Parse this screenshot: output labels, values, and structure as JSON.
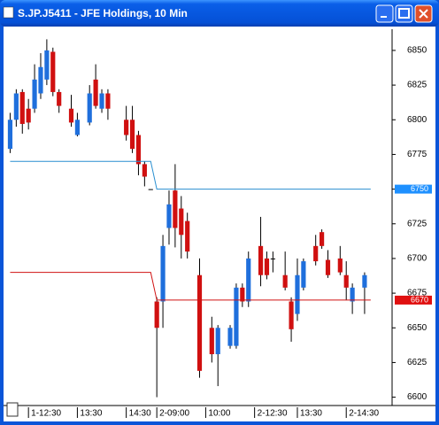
{
  "chart_data": {
    "type": "candlestick",
    "title": "S.JP.J5411 - JFE Holdings, 10 Min",
    "up_color": "#1f6fdc",
    "down_color": "#d01010",
    "x": [
      0,
      1,
      2,
      3,
      4,
      5,
      6,
      7,
      8,
      10,
      11,
      13,
      14,
      15,
      16,
      19,
      20,
      21,
      22,
      23,
      24,
      25,
      26,
      27,
      28,
      29,
      31,
      33,
      34,
      36,
      37,
      38,
      39,
      41,
      42,
      43,
      45,
      46,
      47,
      48,
      50,
      51,
      52,
      54,
      55,
      56,
      58
    ],
    "open": [
      6779,
      6800,
      6820,
      6808,
      6808,
      6819,
      6829,
      6849,
      6820,
      6808,
      6789,
      6798,
      6829,
      6808,
      6819,
      6800,
      6800,
      6789,
      6768,
      6750,
      6669,
      6669,
      6722,
      6749,
      6736,
      6727,
      6688,
      6650,
      6631,
      6637,
      6637,
      6679,
      6669,
      6709,
      6700,
      6700,
      6688,
      6669,
      6660,
      6679,
      6709,
      6719,
      6699,
      6700,
      6688,
      6669,
      6679
    ],
    "high": [
      6805,
      6822,
      6822,
      6815,
      6840,
      6848,
      6858,
      6852,
      6822,
      6818,
      6805,
      6825,
      6840,
      6822,
      6822,
      6810,
      6810,
      6792,
      6770,
      6750,
      6672,
      6717,
      6749,
      6768,
      6745,
      6733,
      6700,
      6658,
      6652,
      6652,
      6682,
      6682,
      6705,
      6730,
      6705,
      6705,
      6705,
      6672,
      6700,
      6700,
      6717,
      6721,
      6706,
      6709,
      6698,
      6682,
      6690
    ],
    "low": [
      6776,
      6795,
      6790,
      6793,
      6805,
      6815,
      6825,
      6817,
      6805,
      6795,
      6788,
      6796,
      6808,
      6805,
      6800,
      6785,
      6776,
      6760,
      6752,
      6750,
      6600,
      6650,
      6710,
      6708,
      6700,
      6700,
      6614,
      6625,
      6608,
      6635,
      6635,
      6665,
      6665,
      6680,
      6685,
      6690,
      6677,
      6640,
      6655,
      6677,
      6695,
      6707,
      6686,
      6688,
      6670,
      6660,
      6660
    ],
    "close": [
      6800,
      6819,
      6797,
      6798,
      6829,
      6838,
      6850,
      6820,
      6810,
      6798,
      6800,
      6819,
      6810,
      6819,
      6808,
      6789,
      6779,
      6768,
      6759,
      6750,
      6650,
      6709,
      6739,
      6722,
      6717,
      6705,
      6619,
      6631,
      6650,
      6650,
      6679,
      6669,
      6700,
      6688,
      6688,
      6700,
      6679,
      6649,
      6688,
      6698,
      6698,
      6709,
      6688,
      6690,
      6679,
      6679,
      6688
    ],
    "lines": [
      {
        "color": "#2a8fd0",
        "tag_color": "#1e90ff",
        "x": [
          0,
          23,
          24,
          59
        ],
        "values": [
          6770,
          6770,
          6750,
          6750
        ]
      },
      {
        "color": "#d01010",
        "tag_color": "#e01010",
        "x": [
          0,
          23,
          24,
          59
        ],
        "values": [
          6690,
          6690,
          6670,
          6670
        ]
      }
    ],
    "xlim": [
      -0.5,
      62.5
    ],
    "xticks": [
      {
        "value": 3,
        "label": "1-12:30"
      },
      {
        "value": 11,
        "label": "13:30"
      },
      {
        "value": 19,
        "label": "14:30"
      },
      {
        "value": 24,
        "label": "2-09:00"
      },
      {
        "value": 32,
        "label": "10:00"
      },
      {
        "value": 40,
        "label": "2-12:30"
      },
      {
        "value": 47,
        "label": "13:30"
      },
      {
        "value": 55,
        "label": "2-14:30"
      }
    ],
    "ylim": [
      6594,
      6864
    ],
    "yticks": [
      6600,
      6625,
      6650,
      6675,
      6700,
      6725,
      6750,
      6775,
      6800,
      6825,
      6850
    ]
  }
}
